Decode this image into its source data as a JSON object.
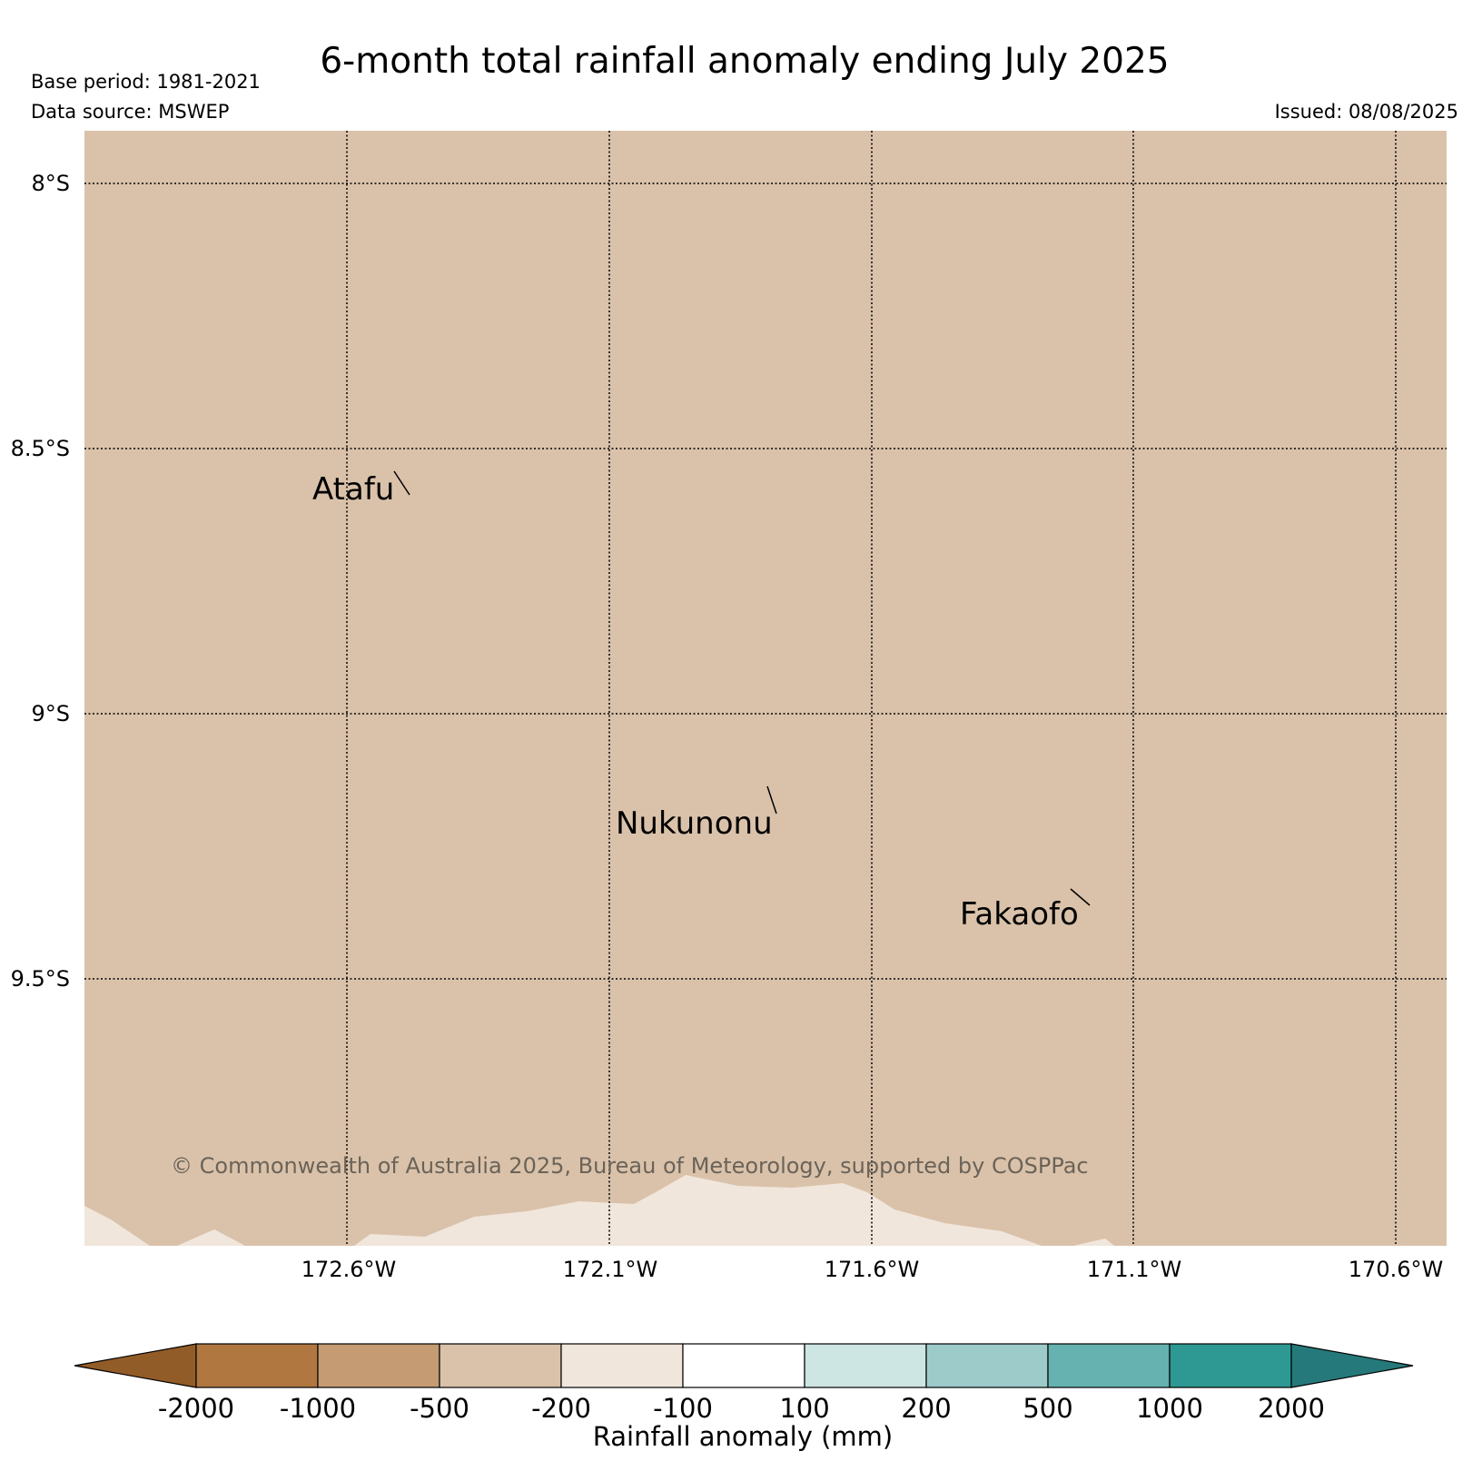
{
  "title": "6-month total rainfall anomaly ending July 2025",
  "base_period": "Base period: 1981-2021",
  "data_source": "Data source: MSWEP",
  "issued": "Issued: 08/08/2025",
  "copyright": "© Commonwealth of Australia 2025, Bureau of Meteorology, supported by COSPPac",
  "map": {
    "lat_ticks": [
      "8°S",
      "8.5°S",
      "9°S",
      "9.5°S"
    ],
    "lon_ticks": [
      "172.6°W",
      "172.1°W",
      "171.6°W",
      "171.1°W",
      "170.6°W"
    ],
    "gridlines": "dotted",
    "fill_class_main": "-500 to -200",
    "fill_class_south": "-200 to -100",
    "colors": {
      "main_fill": "#dac2aa",
      "south_fill": "#f1e6dc"
    },
    "places": [
      {
        "name": "Atafu"
      },
      {
        "name": "Nukunonu"
      },
      {
        "name": "Fakaofo"
      }
    ]
  },
  "colorbar": {
    "label": "Rainfall anomaly (mm)",
    "ticks": [
      "-2000",
      "-1000",
      "-500",
      "-200",
      "-100",
      "100",
      "200",
      "500",
      "1000",
      "2000"
    ],
    "colors": [
      "#925c28",
      "#b07741",
      "#c49b72",
      "#dac2aa",
      "#f1e6dc",
      "#ffffff",
      "#cde5e3",
      "#9ccbca",
      "#65b2b1",
      "#2e9993",
      "#25797a"
    ],
    "extend": "both"
  }
}
